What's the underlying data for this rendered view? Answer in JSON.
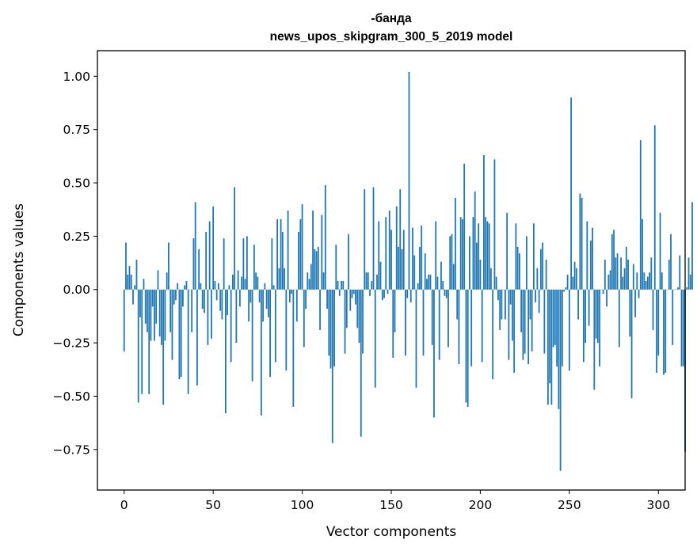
{
  "chart_data": {
    "type": "bar",
    "title_line1": "-банда",
    "title_line2": "news_upos_skipgram_300_5_2019 model",
    "xlabel": "Vector components",
    "ylabel": "Components values",
    "xlim": [
      -15,
      315
    ],
    "ylim": [
      -0.94,
      1.12
    ],
    "xticks": [
      0,
      50,
      100,
      150,
      200,
      250,
      300
    ],
    "xtick_labels": [
      "0",
      "50",
      "100",
      "150",
      "200",
      "250",
      "300"
    ],
    "yticks": [
      -0.75,
      -0.5,
      -0.25,
      0.0,
      0.25,
      0.5,
      0.75,
      1.0
    ],
    "ytick_labels": [
      "−0.75",
      "−0.50",
      "−0.25",
      "0.00",
      "0.25",
      "0.50",
      "0.75",
      "1.00"
    ],
    "bar_color": "#1f77b4",
    "values": [
      -0.29,
      0.22,
      0.07,
      0.11,
      0.07,
      -0.07,
      0.02,
      0.14,
      -0.53,
      -0.13,
      -0.49,
      0.05,
      -0.16,
      -0.2,
      -0.49,
      -0.24,
      -0.08,
      -0.24,
      -0.16,
      0.09,
      -0.22,
      -0.26,
      -0.54,
      -0.24,
      0.08,
      0.22,
      -0.2,
      -0.33,
      -0.07,
      -0.05,
      0.03,
      -0.42,
      -0.41,
      -0.08,
      0.02,
      0.04,
      -0.49,
      0.0,
      -0.2,
      0.24,
      0.41,
      -0.45,
      0.19,
      0.03,
      -0.09,
      -0.11,
      0.27,
      -0.26,
      0.32,
      -0.23,
      0.39,
      0.04,
      -0.05,
      0.03,
      -0.1,
      -0.14,
      0.24,
      -0.58,
      -0.12,
      0.02,
      -0.34,
      0.07,
      0.48,
      -0.25,
      0.09,
      -0.08,
      0.06,
      0.24,
      0.05,
      0.25,
      -0.15,
      -0.06,
      -0.43,
      0.21,
      0.08,
      0.06,
      -0.06,
      -0.59,
      -0.15,
      0.03,
      -0.09,
      -0.13,
      -0.41,
      0.24,
      0.02,
      -0.34,
      0.33,
      0.1,
      0.33,
      0.27,
      0.1,
      -0.38,
      0.37,
      -0.06,
      -0.02,
      -0.55,
      0.0,
      -0.15,
      0.27,
      0.33,
      0.4,
      -0.27,
      -0.09,
      0.08,
      0.05,
      0.12,
      0.37,
      0.19,
      0.18,
      0.2,
      -0.19,
      0.35,
      0.08,
      0.49,
      -0.09,
      -0.31,
      -0.37,
      -0.72,
      -0.36,
      0.21,
      0.04,
      -0.03,
      0.04,
      0.04,
      -0.3,
      -0.18,
      0.26,
      -0.1,
      -0.04,
      -0.02,
      -0.07,
      -0.18,
      -0.25,
      -0.69,
      -0.3,
      0.47,
      0.08,
      0.08,
      -0.03,
      0.04,
      0.48,
      -0.46,
      0.07,
      0.32,
      0.13,
      -0.05,
      -0.04,
      0.34,
      -0.02,
      0.37,
      0.28,
      -0.32,
      -0.2,
      0.39,
      0.2,
      0.47,
      0.19,
      0.28,
      -0.31,
      -0.04,
      1.02,
      -0.06,
      0.29,
      0.16,
      -0.46,
      0.03,
      0.2,
      0.3,
      -0.31,
      0.17,
      0.05,
      0.07,
      0.07,
      -0.26,
      -0.6,
      0.32,
      0.06,
      -0.33,
      0.13,
      0.04,
      -0.03,
      -0.04,
      -0.27,
      0.25,
      0.26,
      0.12,
      0.43,
      -0.14,
      -0.35,
      0.34,
      0.33,
      0.59,
      -0.53,
      -0.55,
      0.25,
      -0.36,
      0.34,
      0.46,
      0.22,
      0.31,
      0.14,
      -0.34,
      0.63,
      0.34,
      0.32,
      0.31,
      0.1,
      -0.42,
      0.61,
      0.06,
      -0.05,
      -0.19,
      -0.14,
      0.0,
      -0.14,
      0.36,
      -0.33,
      -0.07,
      -0.24,
      -0.39,
      0.31,
      0.2,
      0.17,
      -0.2,
      -0.33,
      -0.3,
      0.25,
      -0.35,
      -0.14,
      -0.29,
      0.31,
      -0.06,
      0.1,
      -0.11,
      0.19,
      0.22,
      -0.3,
      0.14,
      -0.54,
      -0.44,
      -0.54,
      -0.27,
      -0.26,
      -0.36,
      -0.56,
      -0.85,
      -0.36,
      -0.01,
      0.01,
      0.07,
      -0.38,
      0.9,
      0.06,
      0.13,
      0.1,
      -0.14,
      0.45,
      0.43,
      -0.34,
      -0.25,
      0.32,
      -0.17,
      0.23,
      0.29,
      -0.47,
      -0.23,
      -0.25,
      -0.36,
      0.0,
      -0.02,
      0.14,
      -0.08,
      0.07,
      0.09,
      0.26,
      0.28,
      0.15,
      0.17,
      -0.27,
      0.15,
      0.06,
      0.1,
      0.2,
      0.14,
      -0.22,
      -0.51,
      0.12,
      -0.13,
      0.08,
      -0.04,
      0.7,
      0.33,
      0.08,
      0.04,
      0.06,
      0.08,
      0.15,
      -0.19,
      0.77,
      -0.39,
      -0.31,
      0.36,
      0.08,
      -0.4,
      -0.39,
      0.0,
      0.14,
      0.26,
      -0.26,
      0.0,
      0.0,
      0.01,
      0.16,
      -0.36,
      -0.36,
      -0.76,
      0.01,
      0.15,
      0.07,
      0.41
    ]
  }
}
